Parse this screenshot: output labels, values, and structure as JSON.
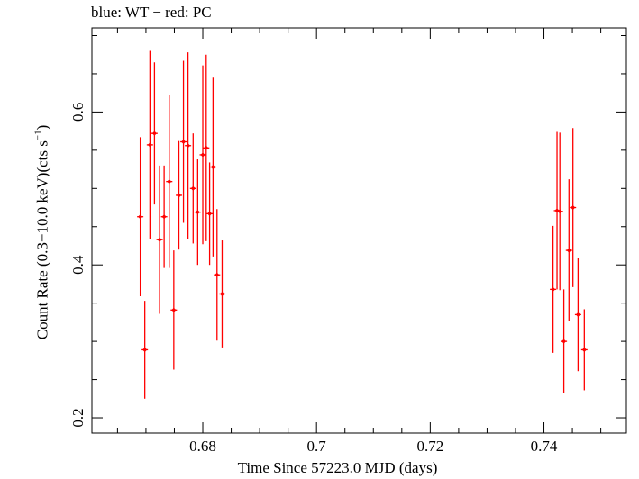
{
  "chart_data": {
    "type": "scatter",
    "title": "blue: WT − red: PC",
    "xlabel": "Time Since 57223.0 MJD (days)",
    "ylabel": {
      "main": "Count Rate (0.3−10.0 keV)(cts s",
      "sup": "−1",
      "close": ")"
    },
    "xlim": [
      0.6605,
      0.7545
    ],
    "ylim": [
      0.18,
      0.71
    ],
    "x_ticks": [
      0.68,
      0.7,
      0.72,
      0.74
    ],
    "x_tick_labels": [
      "0.68",
      "0.7",
      "0.72",
      "0.74"
    ],
    "y_ticks": [
      0.2,
      0.4,
      0.6
    ],
    "y_tick_labels": [
      "0.2",
      "0.4",
      "0.6"
    ],
    "grid": false,
    "series": [
      {
        "name": "PC",
        "color": "#ff0000",
        "points": [
          {
            "x": 0.669,
            "y": 0.463,
            "yerr": 0.104
          },
          {
            "x": 0.6698,
            "y": 0.289,
            "yerr": 0.064
          },
          {
            "x": 0.6707,
            "y": 0.557,
            "yerr": 0.123
          },
          {
            "x": 0.6715,
            "y": 0.572,
            "yerr": 0.093
          },
          {
            "x": 0.6724,
            "y": 0.433,
            "yerr": 0.097
          },
          {
            "x": 0.6732,
            "y": 0.463,
            "yerr": 0.067
          },
          {
            "x": 0.6741,
            "y": 0.509,
            "yerr": 0.113
          },
          {
            "x": 0.6749,
            "y": 0.341,
            "yerr": 0.078
          },
          {
            "x": 0.6758,
            "y": 0.491,
            "yerr": 0.071
          },
          {
            "x": 0.6766,
            "y": 0.561,
            "yerr": 0.106
          },
          {
            "x": 0.6774,
            "y": 0.556,
            "yerr": 0.122
          },
          {
            "x": 0.6783,
            "y": 0.5,
            "yerr": 0.072
          },
          {
            "x": 0.6791,
            "y": 0.469,
            "yerr": 0.069
          },
          {
            "x": 0.68,
            "y": 0.544,
            "yerr": 0.117
          },
          {
            "x": 0.6806,
            "y": 0.553,
            "yerr": 0.122
          },
          {
            "x": 0.6812,
            "y": 0.467,
            "yerr": 0.067
          },
          {
            "x": 0.6818,
            "y": 0.528,
            "yerr": 0.117
          },
          {
            "x": 0.6825,
            "y": 0.387,
            "yerr": 0.086
          },
          {
            "x": 0.6834,
            "y": 0.362,
            "yerr": 0.07
          },
          {
            "x": 0.7416,
            "y": 0.368,
            "yerr": 0.083
          },
          {
            "x": 0.7423,
            "y": 0.471,
            "yerr": 0.103
          },
          {
            "x": 0.7428,
            "y": 0.47,
            "yerr": 0.103
          },
          {
            "x": 0.7435,
            "y": 0.3,
            "yerr": 0.068
          },
          {
            "x": 0.7444,
            "y": 0.419,
            "yerr": 0.093
          },
          {
            "x": 0.7451,
            "y": 0.475,
            "yerr": 0.104
          },
          {
            "x": 0.746,
            "y": 0.335,
            "yerr": 0.074
          },
          {
            "x": 0.7471,
            "y": 0.289,
            "yerr": 0.053
          }
        ]
      }
    ]
  }
}
